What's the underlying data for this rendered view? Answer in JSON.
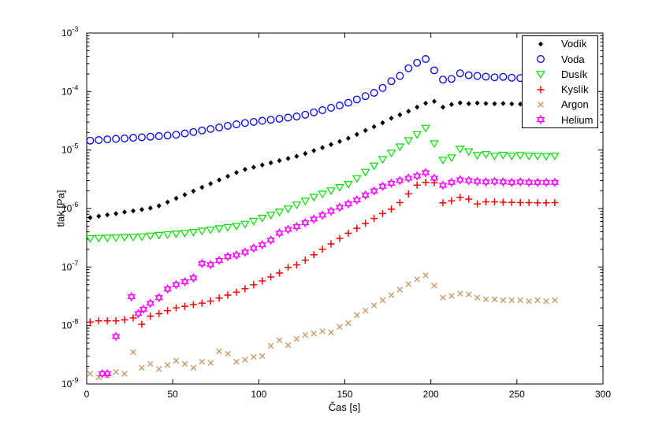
{
  "figure": {
    "background": "#ffffff"
  },
  "chart_data": {
    "type": "scatter",
    "title": "",
    "xlabel": "Čas [s]",
    "ylabel": "tlak [Pa]",
    "xlim": [
      0,
      300
    ],
    "xticks": [
      0,
      50,
      100,
      150,
      200,
      250,
      300
    ],
    "yscale": "log",
    "ylim": [
      1e-09,
      0.001
    ],
    "ytick_exponents": [
      -3,
      -4,
      -5,
      -6,
      -7,
      -8,
      -9
    ],
    "grid": false,
    "legend_position": "top-right",
    "series": [
      {
        "id": "vodik",
        "name": "Vodík",
        "marker": "diamond",
        "color": "#000000",
        "t": [
          2,
          7,
          12,
          17,
          22,
          27,
          32,
          37,
          42,
          47,
          52,
          57,
          62,
          67,
          72,
          77,
          82,
          87,
          92,
          97,
          102,
          107,
          112,
          117,
          122,
          127,
          132,
          137,
          142,
          147,
          152,
          157,
          162,
          167,
          172,
          177,
          182,
          187,
          192,
          197,
          202,
          207,
          212,
          217,
          222,
          227,
          232,
          237,
          242,
          247,
          252,
          257,
          262,
          267,
          272
        ],
        "v": [
          7e-07,
          7.4e-07,
          7.8e-07,
          8.2e-07,
          8.7e-07,
          9.1e-07,
          9.6e-07,
          1.02e-06,
          1.11e-06,
          1.29e-06,
          1.49e-06,
          1.72e-06,
          1.99e-06,
          2.3e-06,
          2.66e-06,
          3.08e-06,
          3.56e-06,
          4.12e-06,
          4.66e-06,
          5.08e-06,
          5.54e-06,
          6.04e-06,
          6.58e-06,
          7.18e-06,
          7.82e-06,
          8.69e-06,
          9.78e-06,
          1.1e-05,
          1.24e-05,
          1.4e-05,
          1.59e-05,
          1.85e-05,
          2.16e-05,
          2.51e-05,
          2.92e-05,
          3.5e-05,
          4e-05,
          4.6e-05,
          5.4e-05,
          6.3e-05,
          6.8e-05,
          5.4e-05,
          6e-05,
          6.4e-05,
          6.2e-05,
          6.35e-05,
          6.25e-05,
          6.2e-05,
          6.25e-05,
          6.15e-05,
          6.1e-05,
          6.15e-05,
          6.1e-05,
          6.05e-05,
          6e-05
        ]
      },
      {
        "id": "voda",
        "name": "Voda",
        "marker": "circle",
        "color": "#0000ff",
        "t": [
          2,
          7,
          12,
          17,
          22,
          27,
          32,
          37,
          42,
          47,
          52,
          57,
          62,
          67,
          72,
          77,
          82,
          87,
          92,
          97,
          102,
          107,
          112,
          117,
          122,
          127,
          132,
          137,
          142,
          147,
          152,
          157,
          162,
          167,
          172,
          177,
          182,
          187,
          192,
          197,
          202,
          207,
          212,
          217,
          222,
          227,
          232,
          237,
          242,
          247,
          252,
          257,
          262,
          267,
          272
        ],
        "v": [
          1.45e-05,
          1.48e-05,
          1.52e-05,
          1.55e-05,
          1.58e-05,
          1.62e-05,
          1.65e-05,
          1.69e-05,
          1.73e-05,
          1.77e-05,
          1.82e-05,
          1.92e-05,
          2.03e-05,
          2.16e-05,
          2.29e-05,
          2.43e-05,
          2.59e-05,
          2.75e-05,
          2.9e-05,
          3.03e-05,
          3.16e-05,
          3.29e-05,
          3.43e-05,
          3.58e-05,
          3.74e-05,
          4.02e-05,
          4.4e-05,
          4.81e-05,
          5.27e-05,
          5.77e-05,
          6.43e-05,
          7.32e-05,
          8.34e-05,
          9.5e-05,
          0.000115,
          0.00015,
          0.000185,
          0.00025,
          0.00031,
          0.00036,
          0.00023,
          0.00016,
          0.000165,
          0.000205,
          0.00019,
          0.000185,
          0.00018,
          0.000175,
          0.000178,
          0.000172,
          0.00017,
          0.00017,
          0.000168,
          0.000165,
          0.000165
        ]
      },
      {
        "id": "dusik",
        "name": "Dusík",
        "marker": "triangle-down",
        "color": "#00e000",
        "t": [
          2,
          7,
          12,
          17,
          22,
          27,
          32,
          37,
          42,
          47,
          52,
          57,
          62,
          67,
          72,
          77,
          82,
          87,
          92,
          97,
          102,
          107,
          112,
          117,
          122,
          127,
          132,
          137,
          142,
          147,
          152,
          157,
          162,
          167,
          172,
          177,
          182,
          187,
          192,
          197,
          202,
          207,
          212,
          217,
          222,
          227,
          232,
          237,
          242,
          247,
          252,
          257,
          262,
          267,
          272
        ],
        "v": [
          3.1e-07,
          3.14e-07,
          3.17e-07,
          3.21e-07,
          3.25e-07,
          3.28e-07,
          3.34e-07,
          3.44e-07,
          3.53e-07,
          3.63e-07,
          3.73e-07,
          3.84e-07,
          3.97e-07,
          4.17e-07,
          4.38e-07,
          4.59e-07,
          4.82e-07,
          5.06e-07,
          5.46e-07,
          6.15e-07,
          6.93e-07,
          7.82e-07,
          8.81e-07,
          1e-06,
          1.17e-06,
          1.36e-06,
          1.58e-06,
          1.79e-06,
          2.04e-06,
          2.32e-06,
          2.63e-06,
          3.3e-06,
          4.24e-06,
          5.45e-06,
          7e-06,
          9e-06,
          1.15e-05,
          1.47e-05,
          1.87e-05,
          2.4e-05,
          1.3e-05,
          6.8e-06,
          7.5e-06,
          1.05e-05,
          9.5e-06,
          8.2e-06,
          8.5e-06,
          8e-06,
          8.3e-06,
          8e-06,
          8.2e-06,
          8e-06,
          8e-06,
          7.9e-06,
          8e-06
        ]
      },
      {
        "id": "kyslik",
        "name": "Kyslík",
        "marker": "plus",
        "color": "#ff0000",
        "t": [
          2,
          7,
          12,
          17,
          22,
          27,
          32,
          37,
          42,
          47,
          52,
          57,
          62,
          67,
          72,
          77,
          82,
          87,
          92,
          97,
          102,
          107,
          112,
          117,
          122,
          127,
          132,
          137,
          142,
          147,
          152,
          157,
          162,
          167,
          172,
          177,
          182,
          187,
          192,
          197,
          202,
          207,
          212,
          217,
          222,
          227,
          232,
          237,
          242,
          247,
          252,
          257,
          262,
          267,
          272
        ],
        "v": [
          1.15e-08,
          1.2e-08,
          1.2e-08,
          1.2e-08,
          1.25e-08,
          1.35e-08,
          1.05e-08,
          1.45e-08,
          1.6e-08,
          1.8e-08,
          2e-08,
          2.13e-08,
          2.27e-08,
          2.41e-08,
          2.62e-08,
          2.95e-08,
          3.31e-08,
          3.72e-08,
          4.26e-08,
          4.97e-08,
          5.79e-08,
          6.75e-08,
          7.89e-08,
          9.9e-08,
          1.09e-07,
          1.31e-07,
          1.62e-07,
          2.01e-07,
          2.48e-07,
          3.08e-07,
          3.78e-07,
          4.59e-07,
          5.57e-07,
          6.77e-07,
          8.2e-07,
          9.8e-07,
          1.26e-06,
          1.78e-06,
          2.52e-06,
          2.8e-06,
          2.75e-06,
          1.25e-06,
          1.35e-06,
          1.55e-06,
          1.45e-06,
          1.2e-06,
          1.3e-06,
          1.3e-06,
          1.28e-06,
          1.27e-06,
          1.26e-06,
          1.26e-06,
          1.25e-06,
          1.25e-06,
          1.26e-06
        ]
      },
      {
        "id": "argon",
        "name": "Argon",
        "marker": "x",
        "color": "#cc9966",
        "t": [
          2,
          7,
          12,
          17,
          22,
          27,
          32,
          37,
          42,
          47,
          52,
          57,
          62,
          67,
          72,
          77,
          82,
          87,
          92,
          97,
          102,
          107,
          112,
          117,
          122,
          127,
          132,
          137,
          142,
          147,
          152,
          157,
          162,
          167,
          172,
          177,
          182,
          187,
          192,
          197,
          202,
          207,
          212,
          217,
          222,
          227,
          232,
          237,
          242,
          247,
          252,
          257,
          262,
          267,
          272
        ],
        "v": [
          1.5e-09,
          1.3e-09,
          1.4e-09,
          1.6e-09,
          1.5e-09,
          3.5e-09,
          1.9e-09,
          2.2e-09,
          1.8e-09,
          2.1e-09,
          2.5e-09,
          2.2e-09,
          1.9e-09,
          2.4e-09,
          2.3e-09,
          3.6e-09,
          3.3e-09,
          2.4e-09,
          2.6e-09,
          2.9e-09,
          3e-09,
          4.5e-09,
          5.6e-09,
          4.6e-09,
          5.9e-09,
          6.9e-09,
          7.3e-09,
          8e-09,
          7.6e-09,
          9.5e-09,
          1.1e-08,
          1.5e-08,
          1.8e-08,
          2.2e-08,
          2.7e-08,
          3.3e-08,
          4.1e-08,
          5.1e-08,
          6.2e-08,
          7.2e-08,
          4.8e-08,
          3e-08,
          3.2e-08,
          3.5e-08,
          3.4e-08,
          3e-08,
          2.8e-08,
          2.8e-08,
          2.7e-08,
          2.7e-08,
          2.7e-08,
          2.6e-08,
          2.7e-08,
          2.6e-08,
          2.7e-08
        ]
      },
      {
        "id": "helium",
        "name": "Helium",
        "marker": "hexagram",
        "color": "#ff00ff",
        "t": [
          9,
          12,
          17,
          26,
          30,
          33,
          37,
          42,
          47,
          52,
          57,
          62,
          67,
          72,
          77,
          82,
          87,
          92,
          97,
          102,
          107,
          112,
          117,
          122,
          127,
          132,
          137,
          142,
          147,
          152,
          157,
          162,
          167,
          172,
          177,
          182,
          187,
          192,
          197,
          202,
          207,
          212,
          217,
          222,
          227,
          232,
          237,
          242,
          247,
          252,
          257,
          262,
          267,
          272
        ],
        "v": [
          1.5e-09,
          1.5e-09,
          6.5e-09,
          3.1e-08,
          1.6e-08,
          1.9e-08,
          2.4e-08,
          3e-08,
          4.2e-08,
          5e-08,
          5.6e-08,
          6.5e-08,
          1.15e-07,
          1.1e-07,
          1.3e-07,
          1.5e-07,
          1.6e-07,
          1.8e-07,
          2.1e-07,
          2.4e-07,
          2.9e-07,
          3.8e-07,
          4.4e-07,
          4.9e-07,
          5.7e-07,
          6.6e-07,
          7.7e-07,
          9e-07,
          1.05e-06,
          1.2e-06,
          1.4e-06,
          1.7e-06,
          2e-06,
          2.4e-06,
          2.7e-06,
          3e-06,
          3.3e-06,
          3.6e-06,
          4.1e-06,
          3.3e-06,
          2.5e-06,
          2.8e-06,
          3.1e-06,
          3e-06,
          2.9e-06,
          2.85e-06,
          2.9e-06,
          2.85e-06,
          2.8e-06,
          2.85e-06,
          2.8e-06,
          2.8e-06,
          2.8e-06,
          2.8e-06
        ]
      }
    ],
    "legend": {
      "labels": [
        "Vodík",
        "Voda",
        "Dusík",
        "Kyslík",
        "Argon",
        "Helium"
      ]
    }
  }
}
